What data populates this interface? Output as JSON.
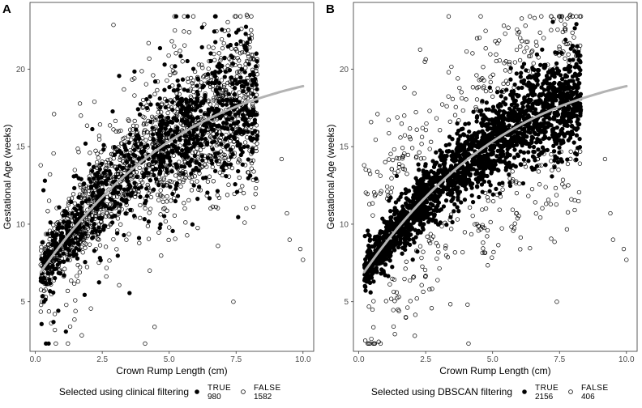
{
  "chart_data": [
    {
      "panel_label": "A",
      "type": "scatter",
      "xlabel": "Crown Rump Length (cm)",
      "ylabel": "Gestational Age (weeks)",
      "xlim": [
        -0.2,
        10.4
      ],
      "ylim": [
        1.8,
        24.3
      ],
      "x_ticks": [
        0.0,
        2.5,
        5.0,
        7.5,
        10.0
      ],
      "x_tick_labels": [
        "0.0",
        "2.5",
        "5.0",
        "7.5",
        "10.0"
      ],
      "y_ticks": [
        5,
        10,
        15,
        20
      ],
      "y_tick_labels": [
        "5",
        "10",
        "15",
        "20"
      ],
      "grid": false,
      "legend": {
        "title": "Selected using clinical filtering",
        "position": "bottom",
        "entries": [
          {
            "label": "TRUE",
            "count": "980",
            "marker": "filled"
          },
          {
            "label": "FALSE",
            "count": "1582",
            "marker": "open"
          }
        ]
      },
      "trend_line": {
        "color": "#b3b3b3",
        "x": [
          0.2,
          10.0
        ],
        "model": "ga = 6.4 + 2.55*x - 0.175*x^2 + 0.0045*x^3"
      },
      "series": [
        {
          "name": "TRUE",
          "marker": "filled",
          "color": "#000000",
          "count": 980,
          "generator": {
            "seed": 11,
            "mode": "clinical_true"
          }
        },
        {
          "name": "FALSE",
          "marker": "open",
          "color": "#000000",
          "count": 1582,
          "generator": {
            "seed": 23,
            "mode": "clinical_false"
          }
        }
      ],
      "notable_points": [
        {
          "x": 7.9,
          "y": 23.5
        },
        {
          "x": 7.7,
          "y": 22.6
        },
        {
          "x": 7.5,
          "y": 21.3
        },
        {
          "x": 5.1,
          "y": 21.8
        },
        {
          "x": 5.5,
          "y": 20.5
        },
        {
          "x": 4.4,
          "y": 19.6
        },
        {
          "x": 3.7,
          "y": 19.4
        },
        {
          "x": 1.7,
          "y": 17.0
        },
        {
          "x": 0.7,
          "y": 17.1
        },
        {
          "x": 0.2,
          "y": 13.8
        },
        {
          "x": 1.3,
          "y": 3.4
        },
        {
          "x": 1.5,
          "y": 4.4
        },
        {
          "x": 4.1,
          "y": 2.3
        },
        {
          "x": 7.4,
          "y": 5.0
        },
        {
          "x": 9.2,
          "y": 14.2
        },
        {
          "x": 9.4,
          "y": 10.7
        },
        {
          "x": 9.5,
          "y": 9.0
        },
        {
          "x": 9.9,
          "y": 8.4
        },
        {
          "x": 10.0,
          "y": 7.7
        }
      ]
    },
    {
      "panel_label": "B",
      "type": "scatter",
      "xlabel": "Crown Rump Length (cm)",
      "ylabel": "Gestational Age (weeks)",
      "xlim": [
        -0.2,
        10.4
      ],
      "ylim": [
        1.8,
        24.3
      ],
      "x_ticks": [
        0.0,
        2.5,
        5.0,
        7.5,
        10.0
      ],
      "x_tick_labels": [
        "0.0",
        "2.5",
        "5.0",
        "7.5",
        "10.0"
      ],
      "y_ticks": [
        5,
        10,
        15,
        20
      ],
      "y_tick_labels": [
        "5",
        "10",
        "15",
        "20"
      ],
      "grid": false,
      "legend": {
        "title": "Selected using DBSCAN filtering",
        "position": "bottom",
        "entries": [
          {
            "label": "TRUE",
            "count": "2156",
            "marker": "filled"
          },
          {
            "label": "FALSE",
            "count": "406",
            "marker": "open"
          }
        ]
      },
      "trend_line": {
        "color": "#b3b3b3",
        "x": [
          0.2,
          10.0
        ],
        "model": "ga = 6.4 + 2.55*x - 0.175*x^2 + 0.0045*x^3"
      },
      "series": [
        {
          "name": "TRUE",
          "marker": "filled",
          "color": "#000000",
          "count": 2156,
          "generator": {
            "seed": 31,
            "mode": "dbscan_true"
          }
        },
        {
          "name": "FALSE",
          "marker": "open",
          "color": "#000000",
          "count": 406,
          "generator": {
            "seed": 47,
            "mode": "dbscan_false"
          }
        }
      ],
      "notable_points": [
        {
          "x": 7.9,
          "y": 23.5
        },
        {
          "x": 7.7,
          "y": 22.6
        },
        {
          "x": 7.5,
          "y": 21.3
        },
        {
          "x": 5.1,
          "y": 21.8
        },
        {
          "x": 5.5,
          "y": 20.5
        },
        {
          "x": 4.4,
          "y": 19.6
        },
        {
          "x": 3.7,
          "y": 19.4
        },
        {
          "x": 1.7,
          "y": 17.0
        },
        {
          "x": 0.7,
          "y": 17.1
        },
        {
          "x": 0.2,
          "y": 13.8
        },
        {
          "x": 1.3,
          "y": 3.4
        },
        {
          "x": 1.5,
          "y": 4.4
        },
        {
          "x": 4.1,
          "y": 2.3
        },
        {
          "x": 7.4,
          "y": 5.0
        },
        {
          "x": 9.2,
          "y": 14.2
        },
        {
          "x": 9.4,
          "y": 10.7
        },
        {
          "x": 9.5,
          "y": 9.0
        },
        {
          "x": 9.9,
          "y": 8.4
        },
        {
          "x": 10.0,
          "y": 7.7
        }
      ]
    }
  ]
}
